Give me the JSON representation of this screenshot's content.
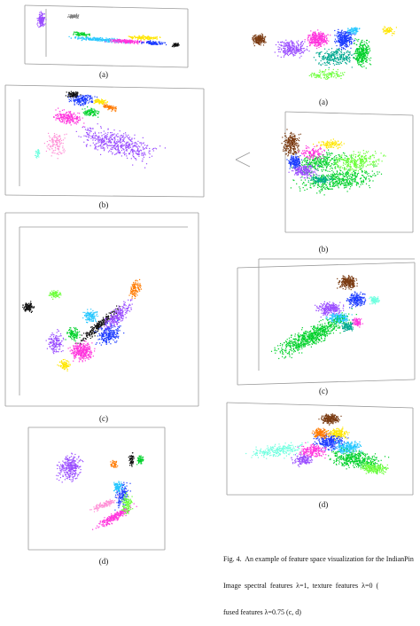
{
  "figure": {
    "left_column_labels": [
      "(a)",
      "(b)",
      "(c)",
      "(d)"
    ],
    "right_column_labels": [
      "(a)",
      "(b)",
      "(c)",
      "(d)"
    ],
    "caption_lines": [
      "Fig. 4.  An example of feature space visualization for the IndianPin",
      "Image  spectral  features  λ=1,  texture  features  λ=0  (",
      "fused features λ=0.75 (c, d)"
    ]
  },
  "colors": {
    "magenta": "#ff33dd",
    "violet": "#9a4dff",
    "green": "#00d12a",
    "lime": "#6cff3a",
    "blue": "#1d3cff",
    "cyan": "#27c7ff",
    "yellow": "#ffe600",
    "orange": "#ff7a00",
    "brown": "#7a3b12",
    "black": "#111111",
    "gray": "#808080",
    "teal": "#00a88f",
    "pink": "#ff8fd6",
    "aqua": "#70ffe0"
  }
}
